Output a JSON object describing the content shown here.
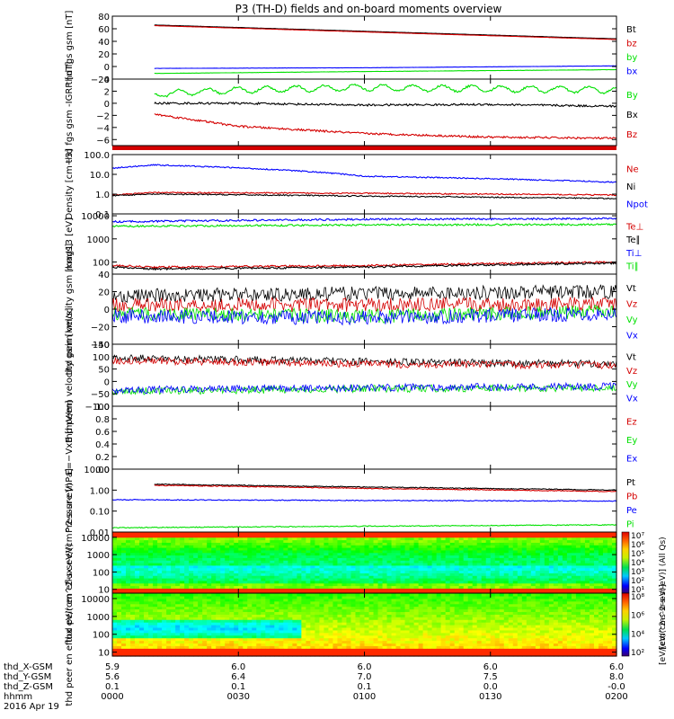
{
  "title": "P3 (TH-D) fields and on-board moments overview",
  "colors": {
    "black": "#000000",
    "red": "#d40000",
    "green": "#00e000",
    "blue": "#0000ff"
  },
  "time_axis": {
    "ticks": [
      "0000",
      "0030",
      "0100",
      "0130",
      "0200"
    ],
    "tick_minutes": [
      0,
      30,
      60,
      90,
      120
    ],
    "row_labels": [
      "thd_X-GSM",
      "thd_Y-GSM",
      "thd_Z-GSM",
      "hhmm",
      "2016 Apr 19"
    ],
    "rows": [
      [
        "5.9",
        "6.0",
        "6.0",
        "6.0",
        "6.0"
      ],
      [
        "5.6",
        "6.4",
        "7.0",
        "7.5",
        "8.0"
      ],
      [
        "0.1",
        "0.1",
        "0.1",
        "0.0",
        "-0.0"
      ]
    ]
  },
  "chart_data": [
    {
      "type": "line",
      "ylabel": "thd fgs gsm [nT]",
      "ylim": [
        -20,
        80
      ],
      "yticks": [
        "80",
        "60",
        "40",
        "20",
        "0",
        "−20"
      ],
      "ytick_values": [
        80,
        60,
        40,
        20,
        0,
        -20
      ],
      "series": [
        {
          "name": "Bt",
          "color": "black",
          "x": [
            10,
            60,
            120
          ],
          "values": [
            66,
            56,
            44
          ]
        },
        {
          "name": "bz",
          "color": "red",
          "x": [
            10,
            60,
            120
          ],
          "values": [
            65,
            55,
            43
          ]
        },
        {
          "name": "by",
          "color": "green",
          "x": [
            10,
            60,
            120
          ],
          "values": [
            -11,
            -8,
            -5
          ]
        },
        {
          "name": "bx",
          "color": "blue",
          "x": [
            10,
            60,
            120
          ],
          "values": [
            -3,
            -2,
            1
          ]
        }
      ]
    },
    {
      "type": "line",
      "ylabel": "thd fgs gsm -IGRF [nT]",
      "ylim": [
        -7,
        4
      ],
      "yticks": [
        "4",
        "2",
        "0",
        "−2",
        "−4",
        "−6"
      ],
      "ytick_values": [
        4,
        2,
        0,
        -2,
        -4,
        -6
      ],
      "series": [
        {
          "name": "By",
          "color": "green",
          "x": [
            10,
            30,
            60,
            90,
            120
          ],
          "values": [
            1.5,
            2.2,
            2.6,
            2.4,
            2.2
          ]
        },
        {
          "name": "Bx",
          "color": "black",
          "x": [
            10,
            30,
            60,
            90,
            120
          ],
          "values": [
            0.0,
            0.0,
            -0.3,
            -0.2,
            -0.5
          ]
        },
        {
          "name": "Bz",
          "color": "red",
          "x": [
            10,
            30,
            60,
            90,
            120
          ],
          "values": [
            -1.8,
            -3.8,
            -5.0,
            -5.6,
            -5.8
          ]
        }
      ]
    },
    {
      "type": "line",
      "ylabel": "Density [cm−3]",
      "ylim": [
        0.1,
        100
      ],
      "yscale": "log",
      "yticks": [
        "100.0",
        "10.0",
        "1.0",
        "0.1"
      ],
      "ytick_values": [
        100,
        10,
        1,
        0.1
      ],
      "series": [
        {
          "name": "Ne",
          "color": "red",
          "x": [
            0,
            10,
            60,
            120
          ],
          "values": [
            0.9,
            1.2,
            1.1,
            0.9
          ]
        },
        {
          "name": "Ni",
          "color": "black",
          "x": [
            0,
            10,
            60,
            120
          ],
          "values": [
            0.85,
            1.0,
            0.8,
            0.6
          ]
        },
        {
          "name": "Npot",
          "color": "blue",
          "x": [
            0,
            10,
            60,
            120
          ],
          "values": [
            20,
            30,
            8,
            4
          ]
        }
      ]
    },
    {
      "type": "line",
      "ylabel": "mag13 [eV]",
      "ylim": [
        30,
        12000
      ],
      "yscale": "log",
      "yticks": [
        "10000",
        "1000",
        "100"
      ],
      "ytick_values": [
        10000,
        1000,
        100
      ],
      "series": [
        {
          "name": "Te⊥",
          "color": "red",
          "x": [
            0,
            10,
            60,
            120
          ],
          "values": [
            70,
            60,
            70,
            100
          ]
        },
        {
          "name": "Te∥",
          "color": "black",
          "x": [
            0,
            10,
            60,
            120
          ],
          "values": [
            60,
            50,
            60,
            90
          ]
        },
        {
          "name": "Ti⊥",
          "color": "blue",
          "x": [
            0,
            60,
            120
          ],
          "values": [
            5500,
            7000,
            7500
          ]
        },
        {
          "name": "Ti∥",
          "color": "green",
          "x": [
            0,
            60,
            120
          ],
          "values": [
            3500,
            4000,
            4200
          ]
        }
      ]
    },
    {
      "type": "line",
      "ylabel": "thd peim velocity gsm [km/s]",
      "ylim": [
        -40,
        40
      ],
      "yticks": [
        "40",
        "20",
        "0",
        "−20",
        "−40"
      ],
      "ytick_values": [
        40,
        20,
        0,
        -20,
        -40
      ],
      "series": [
        {
          "name": "Vt",
          "color": "black",
          "x": [
            0,
            60,
            120
          ],
          "values": [
            15,
            18,
            20
          ]
        },
        {
          "name": "Vz",
          "color": "red",
          "x": [
            0,
            60,
            120
          ],
          "values": [
            5,
            5,
            6
          ]
        },
        {
          "name": "Vy",
          "color": "green",
          "x": [
            0,
            60,
            120
          ],
          "values": [
            -5,
            -8,
            -3
          ]
        },
        {
          "name": "Vx",
          "color": "blue",
          "x": [
            0,
            60,
            120
          ],
          "values": [
            -8,
            -10,
            -5
          ]
        }
      ]
    },
    {
      "type": "line",
      "ylabel": "thd peem velocity gsm [km/s]",
      "ylim": [
        -100,
        150
      ],
      "yticks": [
        "150",
        "100",
        "50",
        "0",
        "−50",
        "−100"
      ],
      "ytick_values": [
        150,
        100,
        50,
        0,
        -50,
        -100
      ],
      "series": [
        {
          "name": "Vt",
          "color": "black",
          "x": [
            0,
            60,
            120
          ],
          "values": [
            95,
            80,
            70
          ]
        },
        {
          "name": "Vz",
          "color": "red",
          "x": [
            0,
            60,
            120
          ],
          "values": [
            85,
            70,
            65
          ]
        },
        {
          "name": "Vy",
          "color": "green",
          "x": [
            0,
            60,
            120
          ],
          "values": [
            -40,
            -30,
            -25
          ]
        },
        {
          "name": "Vx",
          "color": "blue",
          "x": [
            0,
            60,
            120
          ],
          "values": [
            -35,
            -25,
            -20
          ]
        }
      ]
    },
    {
      "type": "line",
      "ylabel": "E=−VxB [mV/m]",
      "ylim": [
        0,
        1
      ],
      "yticks": [
        "1.0",
        "0.8",
        "0.6",
        "0.4",
        "0.2",
        "0.0"
      ],
      "ytick_values": [
        1,
        0.8,
        0.6,
        0.4,
        0.2,
        0
      ],
      "series": [
        {
          "name": "Ez",
          "color": "red",
          "x": [],
          "values": []
        },
        {
          "name": "Ey",
          "color": "green",
          "x": [],
          "values": []
        },
        {
          "name": "Ex",
          "color": "blue",
          "x": [],
          "values": []
        }
      ]
    },
    {
      "type": "line",
      "ylabel": "Pressure [nPa]",
      "ylim": [
        0.01,
        10
      ],
      "yscale": "log",
      "yticks": [
        "10.00",
        "1.00",
        "0.10",
        "0.01"
      ],
      "ytick_values": [
        10,
        1,
        0.1,
        0.01
      ],
      "series": [
        {
          "name": "Pt",
          "color": "black",
          "x": [
            10,
            60,
            120
          ],
          "values": [
            1.9,
            1.4,
            1.0
          ]
        },
        {
          "name": "Pb",
          "color": "red",
          "x": [
            10,
            60,
            120
          ],
          "values": [
            1.7,
            1.2,
            0.85
          ]
        },
        {
          "name": "Pe",
          "color": "blue",
          "x": [
            0,
            60,
            120
          ],
          "values": [
            0.35,
            0.32,
            0.3
          ]
        },
        {
          "name": "Pi",
          "color": "green",
          "x": [
            0,
            60,
            120
          ],
          "values": [
            0.016,
            0.019,
            0.022
          ]
        }
      ]
    },
    {
      "type": "heatmap",
      "ylabel": "thd peir en eflux eV/(cm^2-s-sr-eV)",
      "yscale": "log",
      "ylim": [
        6,
        20000
      ],
      "yticks": [
        "10000",
        "1000",
        "100",
        "10"
      ],
      "ytick_values": [
        10000,
        1000,
        100,
        10
      ],
      "colorbar": {
        "label": "[eV/(cm^2-s-sr-eV)] (All Qs)",
        "ticks": [
          "10⁷",
          "10⁶",
          "10⁵",
          "10⁴",
          "10³",
          "10²",
          "10¹"
        ]
      }
    },
    {
      "type": "heatmap",
      "ylabel": "thd peer en eflux eV/(cm^2-s-sr-eV)",
      "yscale": "log",
      "ylim": [
        6,
        20000
      ],
      "yticks": [
        "10000",
        "1000",
        "100",
        "10"
      ],
      "ytick_values": [
        10000,
        1000,
        100,
        10
      ],
      "colorbar": {
        "label": "[eV/(cm^2-s-sr-eV)]",
        "ticks": [
          "10⁸",
          "10⁶",
          "10⁴",
          "10²"
        ]
      }
    }
  ]
}
